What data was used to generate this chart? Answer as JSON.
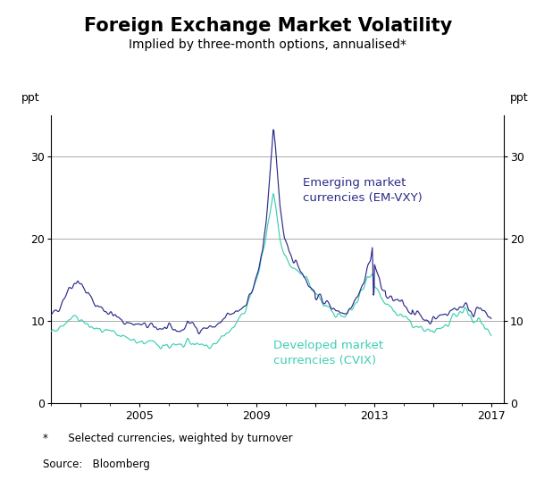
{
  "title": "Foreign Exchange Market Volatility",
  "subtitle": "Implied by three-month options, annualised*",
  "ylabel_left": "ppt",
  "ylabel_right": "ppt",
  "footnote": "*      Selected currencies, weighted by turnover",
  "source": "Source:   Bloomberg",
  "ylim": [
    0,
    35
  ],
  "yticks": [
    0,
    10,
    20,
    30
  ],
  "em_vxy_color": "#2b2b8a",
  "cvix_color": "#3ecfb2",
  "em_label": "Emerging market\ncurrencies (EM-VXY)",
  "cvix_label": "Developed market\ncurrencies (CVIX)",
  "background_color": "#ffffff",
  "grid_color": "#aaaaaa",
  "title_fontsize": 15,
  "subtitle_fontsize": 10,
  "label_fontsize": 9,
  "tick_fontsize": 9,
  "annot_fontsize": 9.5
}
